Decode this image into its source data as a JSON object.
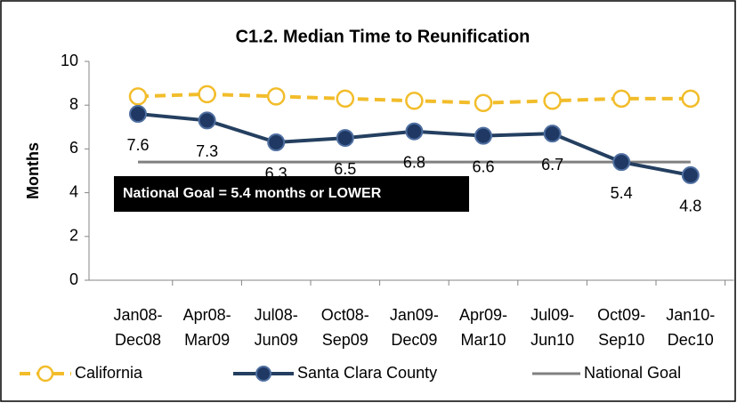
{
  "chart_data": {
    "type": "line",
    "title": "C1.2. Median Time to Reunification",
    "y_axis_label": "Months",
    "categories": [
      [
        "Jan08-",
        "Dec08"
      ],
      [
        "Apr08-",
        "Mar09"
      ],
      [
        "Jul08-",
        "Jun09"
      ],
      [
        "Oct08-",
        "Sep09"
      ],
      [
        "Jan09-",
        "Dec09"
      ],
      [
        "Apr09-",
        "Mar10"
      ],
      [
        "Jul09-",
        "Jun10"
      ],
      [
        "Oct09-",
        "Sep10"
      ],
      [
        "Jan10-",
        "Dec10"
      ]
    ],
    "series": [
      {
        "name": "California",
        "color": "#f2bd2b",
        "values": [
          8.4,
          8.5,
          8.4,
          8.3,
          8.2,
          8.1,
          8.2,
          8.3,
          8.3
        ]
      },
      {
        "name": "Santa Clara County",
        "color": "#243f60",
        "values": [
          7.6,
          7.3,
          6.3,
          6.5,
          6.8,
          6.6,
          6.7,
          5.4,
          4.8
        ]
      },
      {
        "name": "National Goal",
        "color": "#808080",
        "values": [
          5.4,
          5.4,
          5.4,
          5.4,
          5.4,
          5.4,
          5.4,
          5.4,
          5.4
        ]
      }
    ],
    "annotation": "National Goal = 5.4 months or LOWER",
    "ylim": [
      0,
      10
    ],
    "yticks": [
      0,
      2,
      4,
      6,
      8,
      10
    ]
  }
}
